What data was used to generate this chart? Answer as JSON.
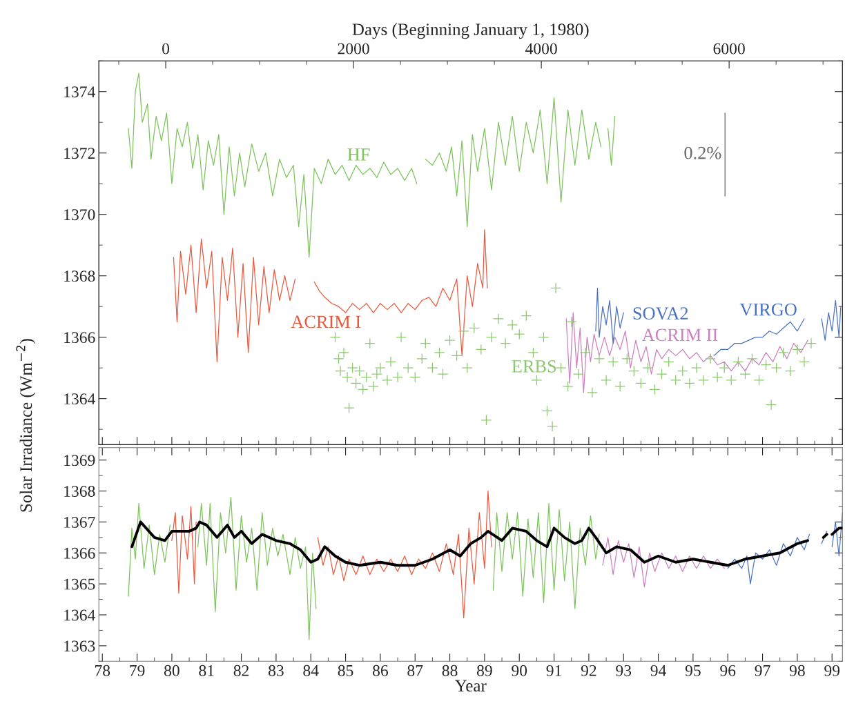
{
  "chart_data": [
    {
      "type": "line",
      "ylabel": "Solar Irradiance (Wm$^{−2}$)",
      "x2label": "Days (Beginning January 1, 1980)",
      "xlim": [
        77.9,
        99.3
      ],
      "xticks": [
        78,
        79,
        80,
        81,
        82,
        83,
        84,
        85,
        86,
        87,
        88,
        89,
        90,
        91,
        92,
        93,
        94,
        95,
        96,
        97,
        98,
        99
      ],
      "ylim": [
        1362.5,
        1375
      ],
      "yticks": [
        1364,
        1366,
        1368,
        1370,
        1372,
        1374
      ],
      "x2lim": [
        -712,
        7207
      ],
      "x2ticks": [
        0,
        2000,
        4000,
        6000
      ],
      "tick_labels": "y",
      "series": [
        {
          "name": "HF",
          "color": "#7dc35b",
          "x": [
            78.75,
            78.85,
            78.95,
            79.05,
            79.15,
            79.3,
            79.4,
            79.55,
            79.7,
            79.85,
            80.0,
            80.15,
            80.3,
            80.45,
            80.6,
            80.75,
            80.9,
            81.05,
            81.2,
            81.35,
            81.5,
            81.65,
            81.8,
            81.95,
            82.1,
            82.3,
            82.5,
            82.7,
            82.9,
            83.1,
            83.3,
            83.5,
            83.65,
            83.8,
            83.95,
            84.1,
            84.3,
            84.5,
            84.7,
            84.9,
            85.1,
            85.3,
            85.5,
            85.7,
            85.9,
            86.1,
            86.3,
            86.5,
            86.7,
            86.9,
            87.05,
            87.15,
            87.3,
            87.5,
            87.7,
            87.9,
            88.05,
            88.2,
            88.35,
            88.5,
            88.65,
            88.8,
            89.0,
            89.2,
            89.4,
            89.6,
            89.8,
            90.0,
            90.2,
            90.4,
            90.6,
            90.8,
            91.0,
            91.2,
            91.4,
            91.6,
            91.8,
            92.0,
            92.2,
            92.35,
            92.45,
            92.55,
            92.65,
            92.75
          ],
          "values": [
            1372.8,
            1371.5,
            1374.0,
            1374.6,
            1373.0,
            1373.6,
            1371.8,
            1373.2,
            1372.4,
            1373.3,
            1371.0,
            1372.8,
            1372.2,
            1373.0,
            1371.5,
            1372.6,
            1370.8,
            1372.4,
            1371.6,
            1372.6,
            1370.0,
            1372.2,
            1370.6,
            1372.0,
            1370.9,
            1372.3,
            1371.4,
            1372.0,
            1370.6,
            1371.8,
            1371.2,
            1371.6,
            1369.6,
            1371.3,
            1368.6,
            1371.5,
            1371.0,
            1371.8,
            1371.3,
            1371.6,
            1371.1,
            1371.6,
            1371.3,
            1371.5,
            1371.2,
            1371.7,
            1371.3,
            1371.5,
            1371.1,
            1371.5,
            1371.0,
            null,
            1371.8,
            1371.6,
            1372.0,
            1371.4,
            1372.2,
            1370.6,
            1372.4,
            1369.6,
            1372.6,
            1371.4,
            1372.8,
            1370.8,
            1373.0,
            1371.6,
            1373.2,
            1371.4,
            1373.0,
            1372.0,
            1373.4,
            1371.0,
            1373.8,
            1370.4,
            1373.4,
            1371.6,
            1373.4,
            1371.8,
            1373.0,
            1372.2,
            null,
            1372.8,
            1371.6,
            1373.2
          ]
        },
        {
          "name": "ACRIM I",
          "color": "#e85a3f",
          "x": [
            80.05,
            80.15,
            80.25,
            80.4,
            80.55,
            80.7,
            80.85,
            81.0,
            81.15,
            81.3,
            81.45,
            81.6,
            81.75,
            81.9,
            82.05,
            82.2,
            82.35,
            82.5,
            82.65,
            82.8,
            82.95,
            83.1,
            83.25,
            83.4,
            83.55,
            83.8,
            84.1,
            84.25,
            84.4,
            84.6,
            84.8,
            85.0,
            85.2,
            85.4,
            85.6,
            85.8,
            86.0,
            86.2,
            86.4,
            86.6,
            86.8,
            87.0,
            87.2,
            87.4,
            87.6,
            87.8,
            88.0,
            88.2,
            88.35,
            88.5,
            88.65,
            88.8,
            88.95,
            89.0,
            89.08
          ],
          "values": [
            1368.6,
            1366.5,
            1368.8,
            1367.4,
            1369.0,
            1366.8,
            1369.2,
            1367.6,
            1368.8,
            1365.2,
            1368.6,
            1367.2,
            1368.9,
            1366.0,
            1368.4,
            1365.5,
            1368.6,
            1366.4,
            1368.3,
            1366.8,
            1368.2,
            1367.2,
            1368.0,
            1367.2,
            1367.9,
            null,
            1367.8,
            1367.5,
            1367.3,
            1367.1,
            1367.0,
            1366.8,
            1367.1,
            1366.9,
            1367.1,
            1366.8,
            1367.1,
            1366.9,
            1367.1,
            1366.8,
            1367.1,
            1366.9,
            1367.2,
            1367.3,
            1367.0,
            1367.6,
            1367.2,
            1367.9,
            1365.4,
            1368.0,
            1367.0,
            1368.4,
            1367.6,
            1369.5,
            1367.6
          ]
        },
        {
          "name": "ERBS",
          "type": "scatter",
          "marker": "cross",
          "color": "#8cc870",
          "x": [
            84.7,
            84.8,
            84.85,
            84.95,
            85.05,
            85.1,
            85.2,
            85.3,
            85.4,
            85.5,
            85.6,
            85.7,
            85.8,
            85.9,
            86.0,
            86.2,
            86.3,
            86.5,
            86.6,
            86.8,
            87.0,
            87.2,
            87.3,
            87.5,
            87.7,
            87.8,
            88.0,
            88.2,
            88.4,
            88.5,
            88.7,
            88.9,
            89.05,
            89.2,
            89.4,
            89.6,
            89.8,
            90.0,
            90.2,
            90.4,
            90.5,
            90.7,
            90.8,
            90.95,
            91.05,
            91.2,
            91.4,
            91.5,
            91.7,
            91.9,
            92.1,
            92.3,
            92.5,
            92.7,
            92.9,
            93.1,
            93.3,
            93.5,
            93.7,
            93.9,
            94.1,
            94.3,
            94.5,
            94.7,
            94.9,
            95.1,
            95.3,
            95.5,
            95.7,
            95.9,
            96.1,
            96.3,
            96.5,
            96.7,
            96.9,
            97.1,
            97.25,
            97.4,
            97.6,
            97.8,
            98.0,
            98.2,
            98.4
          ],
          "values": [
            1366.0,
            1365.3,
            1364.9,
            1365.5,
            1364.7,
            1363.7,
            1365.0,
            1364.5,
            1364.9,
            1364.3,
            1364.7,
            1365.8,
            1364.4,
            1364.8,
            1365.0,
            1364.6,
            1365.2,
            1364.7,
            1366.0,
            1365.0,
            1364.7,
            1365.3,
            1365.8,
            1365.0,
            1365.5,
            1364.8,
            1365.9,
            1365.4,
            1366.2,
            1365.0,
            1366.3,
            1365.6,
            1363.3,
            1366.0,
            1366.6,
            1365.8,
            1366.4,
            1366.1,
            1366.7,
            1365.5,
            1364.6,
            1366.0,
            1363.6,
            1363.1,
            1367.6,
            1365.0,
            1364.4,
            1366.5,
            1364.8,
            1365.5,
            1364.2,
            1365.3,
            1364.6,
            1365.2,
            1364.4,
            1365.3,
            1364.9,
            1364.5,
            1365.0,
            1364.3,
            1364.8,
            1365.2,
            1364.6,
            1364.9,
            1364.5,
            1365.0,
            1364.6,
            1365.3,
            1364.7,
            1365.0,
            1364.6,
            1365.2,
            1364.8,
            1365.3,
            1364.6,
            1365.1,
            1363.8,
            1365.0,
            1365.5,
            1364.9,
            1365.6,
            1365.2,
            1365.8
          ]
        },
        {
          "name": "ACRIM II",
          "color": "#cc80c0",
          "x": [
            91.35,
            91.45,
            91.55,
            91.65,
            91.75,
            91.85,
            91.95,
            92.05,
            92.15,
            92.3,
            92.45,
            92.6,
            92.75,
            92.9,
            93.05,
            93.2,
            93.35,
            93.5,
            93.65,
            93.8,
            93.95,
            94.1,
            94.3,
            94.5,
            94.7,
            94.9,
            95.1,
            95.3,
            95.5,
            95.7,
            95.9,
            96.1,
            96.3,
            96.5,
            96.7,
            96.9,
            97.1,
            97.3,
            97.5,
            97.7,
            97.9,
            98.1,
            98.3
          ],
          "values": [
            1366.6,
            1364.5,
            1366.8,
            1365.0,
            1366.3,
            1364.2,
            1366.0,
            1365.2,
            1366.1,
            1365.4,
            1366.0,
            1365.4,
            1366.0,
            1365.6,
            1366.2,
            1365.0,
            1365.9,
            1365.2,
            1365.7,
            1364.8,
            1365.6,
            1365.3,
            1365.6,
            1365.4,
            1365.6,
            1365.3,
            1365.5,
            1365.2,
            1365.4,
            1365.1,
            1365.2,
            1364.9,
            1365.2,
            1364.9,
            1365.3,
            1365.1,
            1365.5,
            1365.2,
            1365.7,
            1365.3,
            1365.8,
            1365.5,
            1365.9
          ]
        },
        {
          "name": "SOVA2",
          "color": "#4a72c0",
          "x": [
            92.2,
            92.25,
            92.3,
            92.4,
            92.5,
            92.6,
            92.7,
            92.8,
            92.9,
            93.0
          ],
          "values": [
            1366.2,
            1367.6,
            1366.0,
            1367.0,
            1366.4,
            1367.2,
            1365.8,
            1367.0,
            1366.3,
            1366.8
          ]
        },
        {
          "name": "VIRGO",
          "color": "#4a72c0",
          "x": [
            95.6,
            95.8,
            96.0,
            96.2,
            96.4,
            96.6,
            96.8,
            97.0,
            97.2,
            97.4,
            97.6,
            97.8,
            98.0,
            98.2,
            98.45,
            98.7,
            98.8,
            98.9,
            99.0,
            99.1,
            99.2,
            99.25
          ],
          "values": [
            1365.4,
            1365.6,
            1365.6,
            1365.8,
            1365.8,
            1365.9,
            1366.0,
            1366.0,
            1366.2,
            1366.1,
            1366.3,
            1366.5,
            1366.2,
            1366.6,
            null,
            1366.6,
            1365.9,
            1366.8,
            1366.2,
            1367.2,
            1366.0,
            1367.0
          ]
        },
        {
          "name": "0.2%",
          "color": "#666666",
          "x": [
            95.92,
            95.92
          ],
          "values": [
            1373.3,
            1370.6
          ]
        }
      ]
    },
    {
      "type": "line",
      "xlabel": "Year",
      "xlim": [
        77.9,
        99.3
      ],
      "xticks": [
        78,
        79,
        80,
        81,
        82,
        83,
        84,
        85,
        86,
        87,
        88,
        89,
        90,
        91,
        92,
        93,
        94,
        95,
        96,
        97,
        98,
        99
      ],
      "ylim": [
        1362.5,
        1369.4
      ],
      "yticks": [
        1363,
        1364,
        1365,
        1366,
        1367,
        1368,
        1369
      ],
      "series": [
        {
          "color": "#7dc35b",
          "x": [
            78.75,
            78.85,
            78.95,
            79.05,
            79.2,
            79.35,
            79.5,
            79.65,
            79.8,
            79.95
          ],
          "values": [
            1364.6,
            1366.8,
            1365.8,
            1367.6,
            1365.5,
            1366.9,
            1365.3,
            1366.6,
            1365.7,
            1366.9
          ]
        },
        {
          "color": "#e85a3f",
          "x": [
            80.0,
            80.1,
            80.2,
            80.3,
            80.45,
            80.55,
            80.65,
            80.7
          ],
          "values": [
            1366.4,
            1367.3,
            1364.7,
            1367.2,
            1365.8,
            1367.5,
            1365.0,
            1367.0
          ]
        },
        {
          "color": "#7dc35b",
          "x": [
            80.75,
            80.85,
            81.0,
            81.1,
            81.25,
            81.4,
            81.55,
            81.7,
            81.85,
            82.0,
            82.15,
            82.3,
            82.45,
            82.6,
            82.75,
            82.9,
            83.05,
            83.2,
            83.4,
            83.55,
            83.7,
            83.85,
            83.95,
            84.05,
            84.15
          ],
          "values": [
            1366.2,
            1367.6,
            1365.6,
            1367.6,
            1364.1,
            1367.3,
            1366.0,
            1367.8,
            1364.8,
            1367.2,
            1365.7,
            1366.8,
            1364.8,
            1367.3,
            1365.6,
            1366.8,
            1365.9,
            1366.6,
            1365.3,
            1366.5,
            1365.5,
            1366.2,
            1363.2,
            1366.0,
            1364.2
          ]
        },
        {
          "color": "#e85a3f",
          "x": [
            84.2,
            84.35,
            84.5,
            84.65,
            84.8,
            84.95,
            85.1,
            85.3,
            85.5,
            85.7,
            85.9,
            86.1,
            86.3,
            86.5,
            86.7,
            86.9,
            87.1,
            87.3,
            87.5,
            87.7,
            87.9,
            88.1,
            88.25,
            88.4,
            88.55,
            88.7,
            88.85,
            89.0,
            89.1,
            89.2
          ],
          "values": [
            1366.5,
            1365.6,
            1366.2,
            1365.3,
            1365.9,
            1365.1,
            1365.8,
            1365.3,
            1365.9,
            1365.3,
            1365.8,
            1365.4,
            1365.8,
            1365.4,
            1365.9,
            1365.3,
            1365.8,
            1365.5,
            1366.0,
            1365.4,
            1366.3,
            1365.3,
            1366.6,
            1363.9,
            1366.8,
            1365.0,
            1367.3,
            1365.5,
            1368.0,
            1366.2
          ]
        },
        {
          "color": "#7dc35b",
          "x": [
            89.25,
            89.35,
            89.5,
            89.65,
            89.8,
            89.95,
            90.1,
            90.25,
            90.4,
            90.55,
            90.7,
            90.85,
            91.0,
            91.15,
            91.3,
            91.45,
            91.6,
            91.75,
            91.9,
            92.05,
            92.2,
            92.3
          ],
          "values": [
            1364.8,
            1367.3,
            1365.4,
            1367.3,
            1365.8,
            1367.3,
            1364.6,
            1367.1,
            1365.2,
            1367.3,
            1364.4,
            1367.6,
            1364.8,
            1367.4,
            1365.1,
            1367.0,
            1364.2,
            1366.8,
            1365.6,
            1367.2,
            1365.8,
            1366.6
          ]
        },
        {
          "color": "#cc80c0",
          "x": [
            92.4,
            92.55,
            92.7,
            92.85,
            93.0,
            93.15,
            93.3,
            93.45,
            93.6,
            93.75,
            93.9,
            94.1,
            94.3,
            94.5,
            94.7,
            94.9,
            95.1,
            95.3,
            95.5,
            95.7,
            95.9
          ],
          "values": [
            1365.6,
            1366.5,
            1365.3,
            1366.4,
            1365.7,
            1366.3,
            1365.2,
            1366.2,
            1364.9,
            1366.0,
            1365.4,
            1366.0,
            1365.5,
            1365.9,
            1365.4,
            1365.9,
            1365.5,
            1365.9,
            1365.5,
            1365.8,
            1365.5
          ]
        },
        {
          "color": "#4a72c0",
          "x": [
            96.0,
            96.2,
            96.4,
            96.55,
            96.65,
            96.8,
            97.0,
            97.2,
            97.4,
            97.6,
            97.8,
            98.0,
            98.2,
            98.35,
            98.5,
            98.7,
            98.85,
            98.95,
            99.0,
            99.1,
            99.2,
            99.3
          ],
          "values": [
            1365.5,
            1365.8,
            1365.5,
            1365.9,
            1365.0,
            1366.0,
            1365.8,
            1366.1,
            1365.6,
            1366.3,
            1365.9,
            1366.5,
            1366.1,
            1366.6,
            null,
            1366.3,
            1366.7,
            null,
            1366.2,
            1367.0,
            1365.9,
            1367.3
          ]
        },
        {
          "color": "#000000",
          "x": [
            78.85,
            79.1,
            79.5,
            79.8,
            80.0,
            80.5,
            80.7,
            80.8,
            81.0,
            81.3,
            81.6,
            81.8,
            82.0,
            82.3,
            82.6,
            83.0,
            83.4,
            83.7,
            84.0,
            84.2,
            84.4,
            84.7,
            85.0,
            85.4,
            86.0,
            86.5,
            87.0,
            87.5,
            88.0,
            88.3,
            88.6,
            88.9,
            89.1,
            89.5,
            89.8,
            90.2,
            90.5,
            90.8,
            91.0,
            91.3,
            91.6,
            91.8,
            92.0,
            92.2,
            92.5,
            92.8,
            93.2,
            93.6,
            94.0,
            94.5,
            95.0,
            95.5,
            96.0,
            96.5,
            97.0,
            97.5,
            98.0,
            98.3,
            98.5,
            98.75,
            98.85,
            98.95,
            99.0,
            99.2,
            99.3
          ],
          "values": [
            1366.2,
            1367.0,
            1366.5,
            1366.4,
            1366.7,
            1366.7,
            1366.8,
            1367.0,
            1366.9,
            1366.5,
            1366.9,
            1366.5,
            1366.7,
            1366.3,
            1366.6,
            1366.4,
            1366.3,
            1366.1,
            1365.7,
            1365.8,
            1366.2,
            1365.9,
            1365.7,
            1365.6,
            1365.7,
            1365.6,
            1365.6,
            1365.8,
            1366.1,
            1365.9,
            1366.3,
            1366.5,
            1366.7,
            1366.4,
            1366.8,
            1366.7,
            1366.4,
            1366.2,
            1366.8,
            1366.5,
            1366.3,
            1366.4,
            1366.8,
            1366.5,
            1366.0,
            1366.2,
            1366.1,
            1365.7,
            1365.9,
            1365.7,
            1365.8,
            1365.7,
            1365.6,
            1365.8,
            1365.9,
            1366.0,
            1366.3,
            1366.4,
            null,
            1366.5,
            1366.6,
            null,
            1366.6,
            1366.8,
            1366.8
          ]
        }
      ]
    }
  ]
}
